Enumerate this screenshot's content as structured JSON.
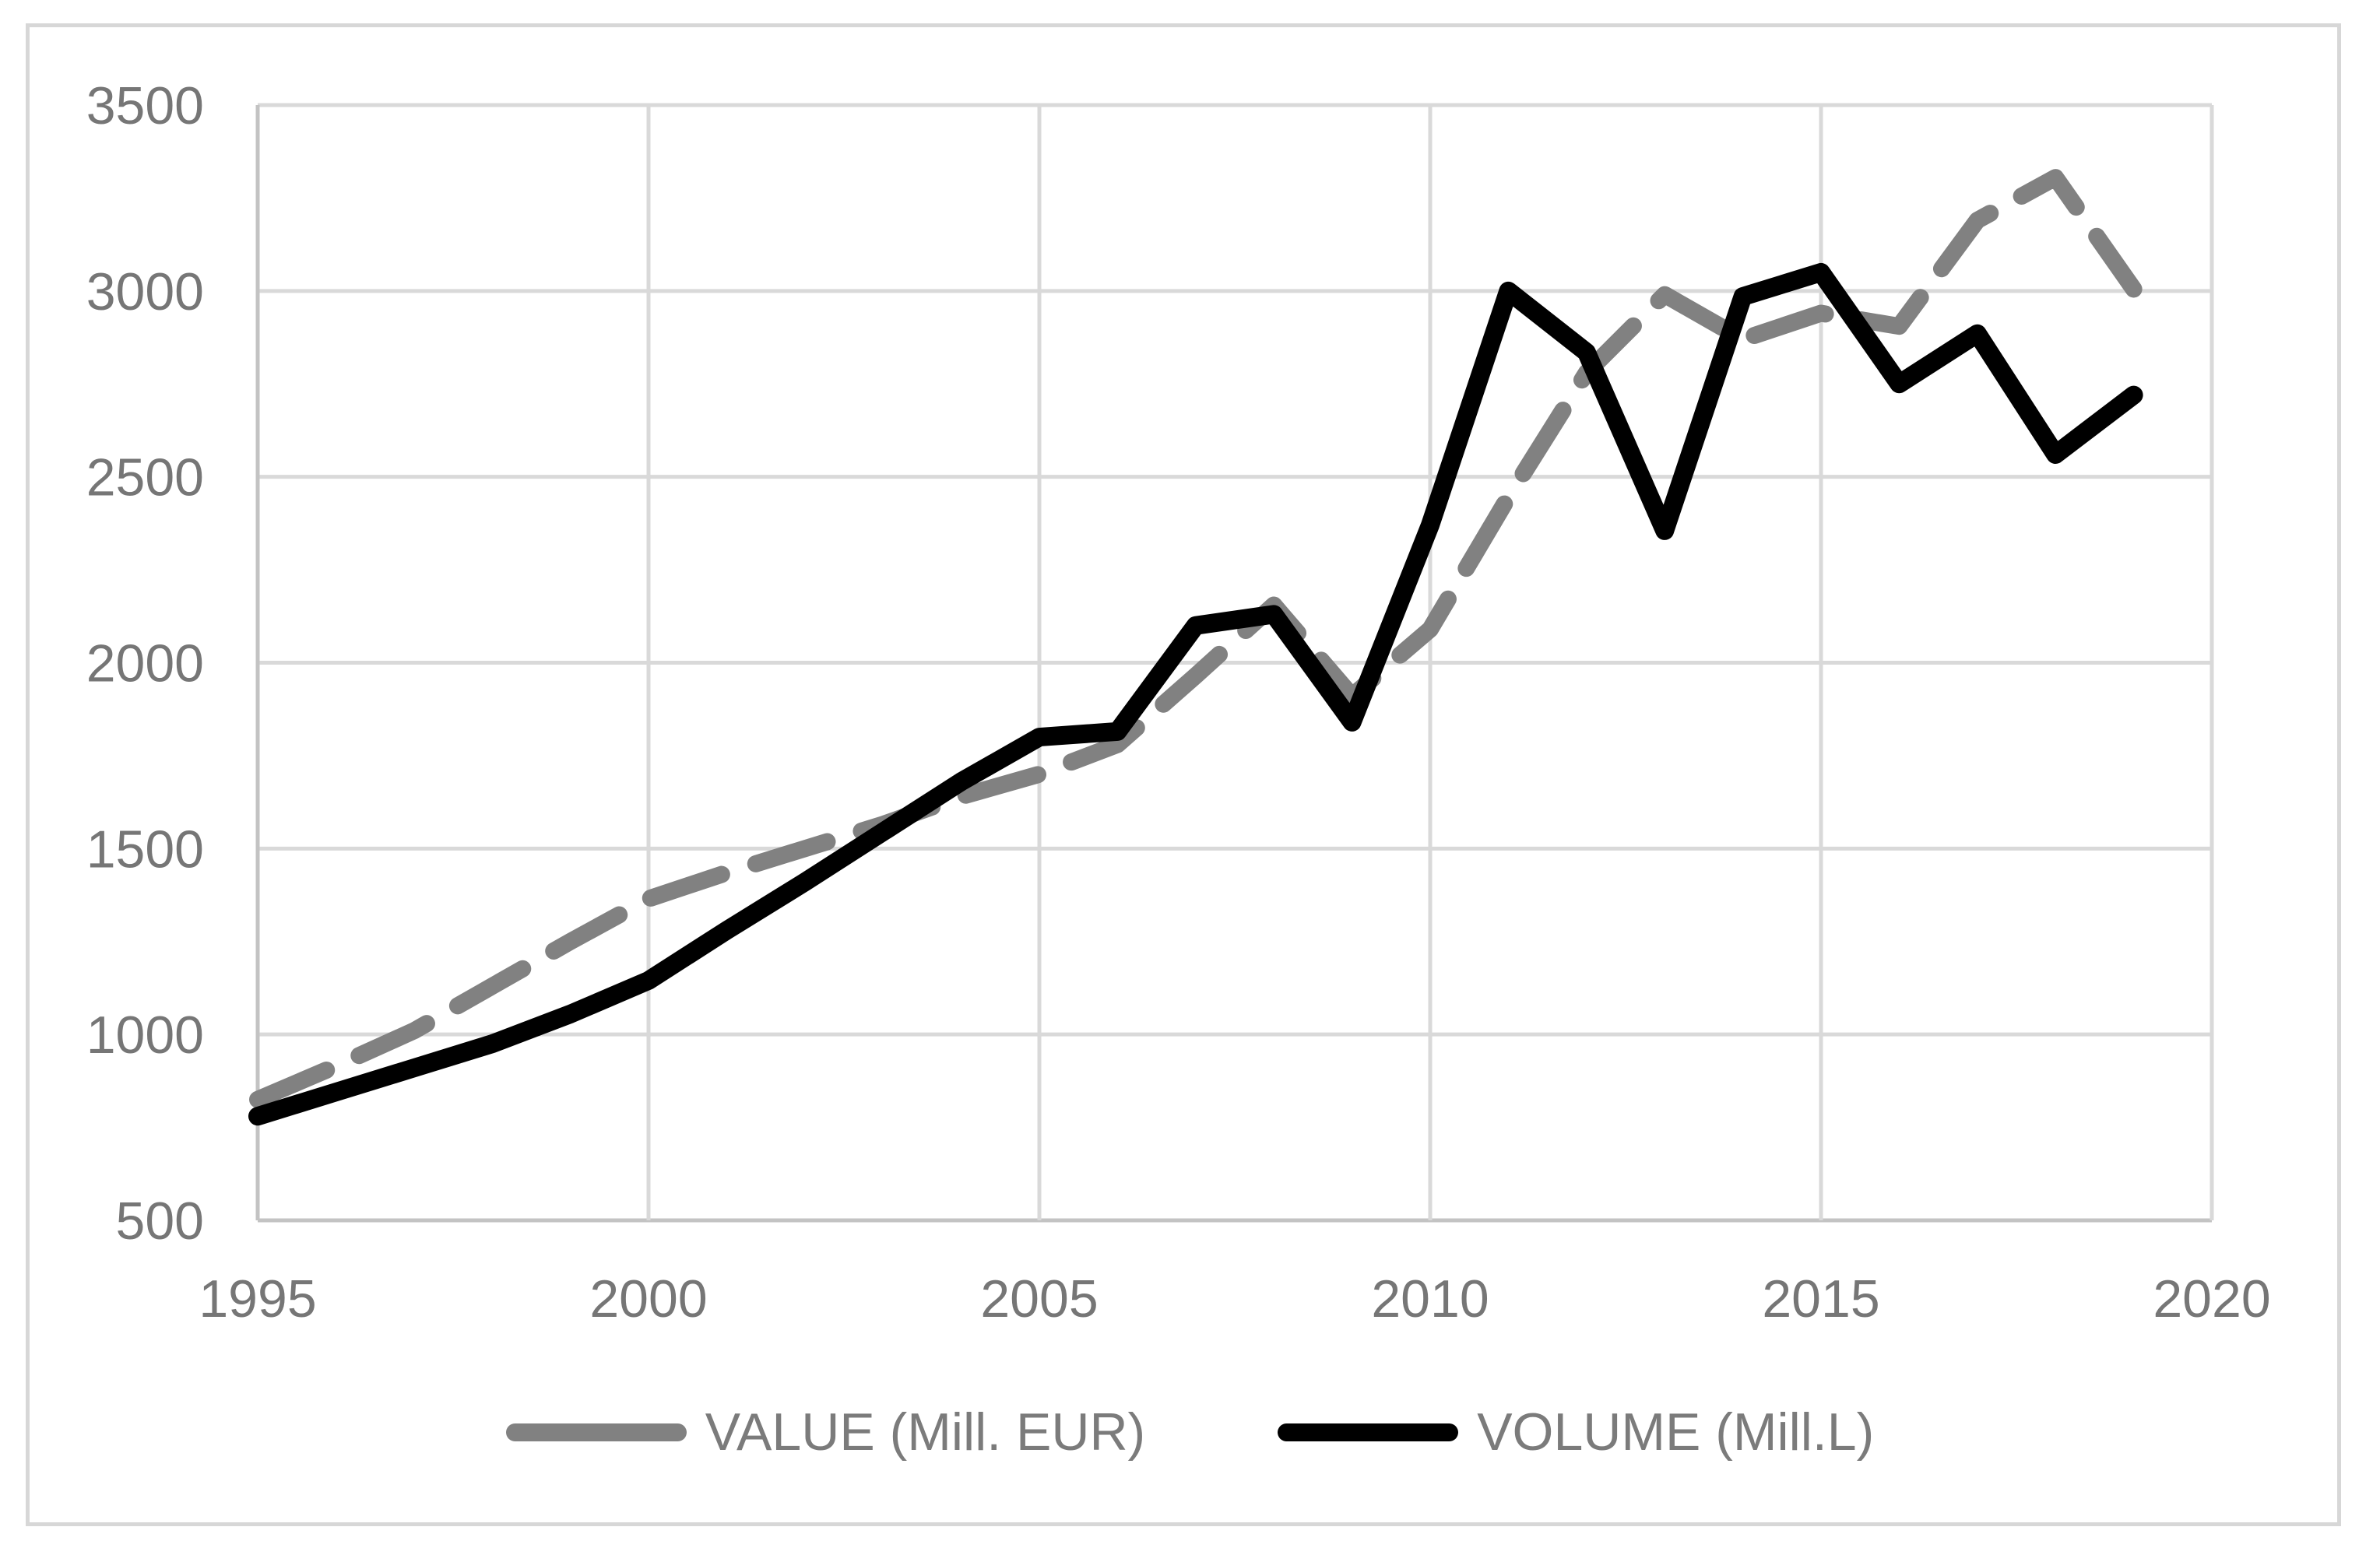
{
  "chart_data": {
    "type": "line",
    "title": "",
    "xlabel": "",
    "ylabel": "",
    "x": [
      1995,
      1996,
      1997,
      1998,
      1999,
      2000,
      2001,
      2002,
      2003,
      2004,
      2005,
      2006,
      2007,
      2008,
      2009,
      2010,
      2011,
      2012,
      2013,
      2014,
      2015,
      2016,
      2017,
      2018,
      2019
    ],
    "series": [
      {
        "name": "VALUE (Mill. EUR)",
        "legend_label": "VALUE (Mill. EUR)",
        "style": "dashed",
        "color": "#818181",
        "values": [
          825,
          915,
          1010,
          1130,
          1250,
          1365,
          1435,
          1500,
          1565,
          1640,
          1700,
          1780,
          1965,
          2155,
          1910,
          2090,
          2445,
          2780,
          2990,
          2870,
          2940,
          2905,
          3190,
          3305,
          3005
        ]
      },
      {
        "name": "VOLUME (Mill.L)",
        "legend_label": "VOLUME (Mill.L)",
        "style": "solid",
        "color": "#000000",
        "values": [
          780,
          845,
          910,
          975,
          1055,
          1145,
          1280,
          1410,
          1545,
          1680,
          1800,
          1815,
          2100,
          2130,
          1840,
          2370,
          3000,
          2835,
          2355,
          2985,
          3050,
          2750,
          2885,
          2560,
          2720
        ]
      }
    ],
    "xticks": [
      1995,
      2000,
      2005,
      2010,
      2015,
      2020
    ],
    "yticks": [
      500,
      1000,
      1500,
      2000,
      2500,
      3000,
      3500
    ],
    "xlim": [
      1995,
      2020
    ],
    "ylim": [
      500,
      3500
    ],
    "grid": true,
    "legend_position": "bottom",
    "colors": {
      "gridline": "#d9d9d9",
      "axis_line": "#c3c3c3",
      "tick_text": "#767676",
      "legend_text": "#7b7b7b",
      "frame_border": "#d7d7d7",
      "background": "#ffffff"
    }
  }
}
